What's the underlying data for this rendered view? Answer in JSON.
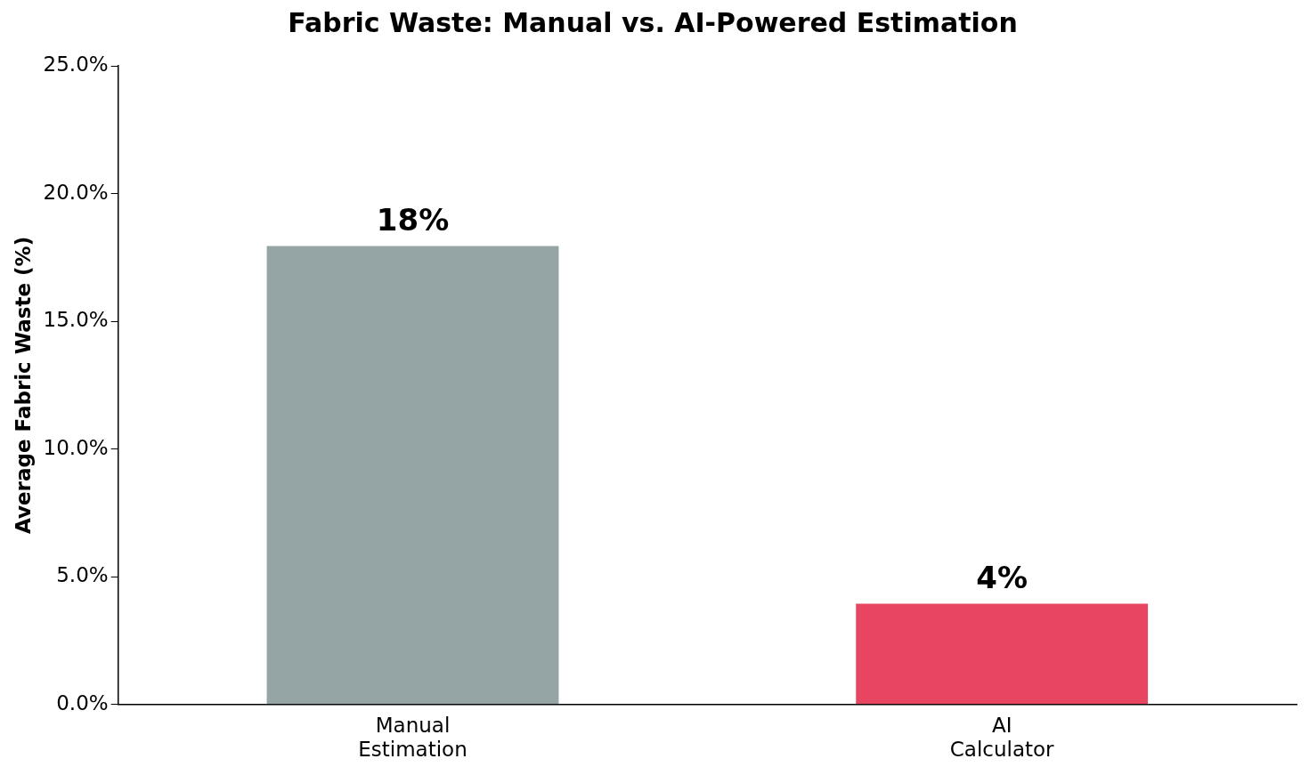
{
  "chart_data": {
    "type": "bar",
    "title": "Fabric Waste: Manual vs. AI-Powered Estimation",
    "ylabel": "Average Fabric Waste (%)",
    "categories": [
      "Manual Estimation",
      "AI Calculator"
    ],
    "values": [
      18,
      4
    ],
    "colors": [
      "#95a5a6",
      "#e84560"
    ],
    "value_labels": [
      "18%",
      "4%"
    ],
    "ylim": [
      0,
      25
    ],
    "yticks": [
      {
        "value": 0,
        "label": "0.0%"
      },
      {
        "value": 5,
        "label": "5.0%"
      },
      {
        "value": 10,
        "label": "10.0%"
      },
      {
        "value": 15,
        "label": "15.0%"
      },
      {
        "value": 20,
        "label": "20.0%"
      },
      {
        "value": 25,
        "label": "25.0%"
      }
    ],
    "grid": false,
    "legend": false
  }
}
